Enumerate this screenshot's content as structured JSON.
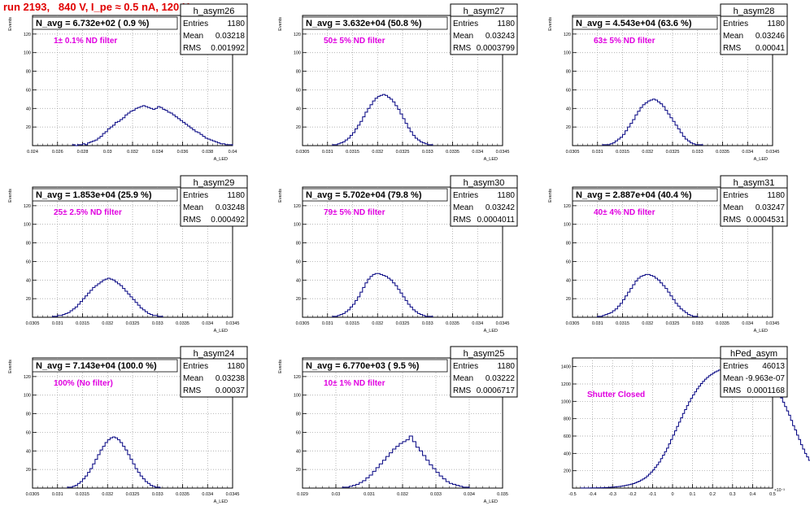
{
  "page": {
    "title": "run 2193,   840 V, I_pe ≈ 0.5 nA, 120 Hz"
  },
  "colors": {
    "histogram": "#000080",
    "annotation": "#e000e0",
    "title": "#e00000",
    "grid": "#999999"
  },
  "chart_data": [
    {
      "type": "bar",
      "hist_name": "h_asym26",
      "header": "N_avg = 6.732e+02 ( 0.9 %)",
      "annotation": "1± 0.1% ND filter",
      "stats": {
        "entries_label": "Entries",
        "entries": "1180",
        "mean_label": "Mean",
        "mean": "0.03218",
        "rms_label": "RMS",
        "rms": "0.001992"
      },
      "xlabel": "A_LED",
      "ylabel": "Events",
      "xlim": [
        0.024,
        0.04
      ],
      "ylim": [
        0,
        140
      ],
      "xticks": [
        "0.024",
        "0.026",
        "0.028",
        "0.03",
        "0.032",
        "0.034",
        "0.036",
        "0.038",
        "0.04"
      ],
      "yticks": [
        "20",
        "40",
        "60",
        "80",
        "100",
        "120"
      ],
      "grid": true,
      "bins": {
        "x0": 0.0272,
        "dx": 0.0002,
        "counts": [
          1,
          0,
          1,
          1,
          2,
          1,
          3,
          4,
          5,
          6,
          8,
          10,
          13,
          15,
          18,
          20,
          22,
          25,
          26,
          28,
          30,
          33,
          35,
          37,
          38,
          40,
          41,
          42,
          43,
          42,
          41,
          40,
          39,
          40,
          42,
          41,
          39,
          38,
          36,
          35,
          33,
          31,
          29,
          27,
          25,
          23,
          21,
          19,
          17,
          15,
          14,
          12,
          10,
          8,
          7,
          6,
          5,
          4,
          3,
          2,
          2,
          1,
          1,
          1
        ]
      }
    },
    {
      "type": "bar",
      "hist_name": "h_asym27",
      "header": "N_avg = 3.632e+04 (50.8 %)",
      "annotation": "50± 5% ND filter",
      "stats": {
        "entries_label": "Entries",
        "entries": "1180",
        "mean_label": "Mean",
        "mean": "0.03243",
        "rms_label": "RMS",
        "rms": "0.0003799"
      },
      "xlabel": "A_LED",
      "ylabel": "Events",
      "xlim": [
        0.0305,
        0.0345
      ],
      "ylim": [
        0,
        140
      ],
      "xticks": [
        "0.0305",
        "0.031",
        "0.0315",
        "0.032",
        "0.0325",
        "0.033",
        "0.0335",
        "0.034",
        "0.0345"
      ],
      "yticks": [
        "20",
        "40",
        "60",
        "80",
        "100",
        "120"
      ],
      "grid": true,
      "bins": {
        "x0": 0.0311,
        "dx": 5e-05,
        "counts": [
          1,
          1,
          2,
          3,
          4,
          6,
          8,
          11,
          14,
          18,
          22,
          26,
          31,
          36,
          40,
          44,
          48,
          51,
          53,
          54,
          55,
          54,
          52,
          50,
          47,
          43,
          39,
          34,
          29,
          24,
          19,
          15,
          11,
          8,
          6,
          4,
          3,
          2,
          1,
          1
        ]
      }
    },
    {
      "type": "bar",
      "hist_name": "h_asym28",
      "header": "N_avg = 4.543e+04 (63.6 %)",
      "annotation": "63± 5% ND filter",
      "stats": {
        "entries_label": "Entries",
        "entries": "1180",
        "mean_label": "Mean",
        "mean": "0.03246",
        "rms_label": "RMS",
        "rms": "0.00041"
      },
      "xlabel": "A_LED",
      "ylabel": "Events",
      "xlim": [
        0.0305,
        0.0345
      ],
      "ylim": [
        0,
        140
      ],
      "xticks": [
        "0.0305",
        "0.031",
        "0.0315",
        "0.032",
        "0.0325",
        "0.033",
        "0.0335",
        "0.034",
        "0.0345"
      ],
      "yticks": [
        "20",
        "40",
        "60",
        "80",
        "100",
        "120"
      ],
      "grid": true,
      "bins": {
        "x0": 0.0311,
        "dx": 5e-05,
        "counts": [
          1,
          1,
          1,
          2,
          3,
          5,
          7,
          9,
          12,
          16,
          20,
          24,
          28,
          33,
          37,
          41,
          44,
          46,
          48,
          49,
          50,
          49,
          47,
          45,
          42,
          38,
          34,
          30,
          26,
          22,
          18,
          14,
          10,
          7,
          5,
          3,
          2,
          1,
          1,
          1
        ]
      }
    },
    {
      "type": "bar",
      "hist_name": "h_asym29",
      "header": "N_avg = 1.853e+04 (25.9 %)",
      "annotation": "25± 2.5% ND filter",
      "stats": {
        "entries_label": "Entries",
        "entries": "1180",
        "mean_label": "Mean",
        "mean": "0.03248",
        "rms_label": "RMS",
        "rms": "0.000492"
      },
      "xlabel": "A_LED",
      "ylabel": "Events",
      "xlim": [
        0.0305,
        0.0345
      ],
      "ylim": [
        0,
        140
      ],
      "xticks": [
        "0.0305",
        "0.031",
        "0.0315",
        "0.032",
        "0.0325",
        "0.033",
        "0.0335",
        "0.034",
        "0.0345"
      ],
      "yticks": [
        "20",
        "40",
        "60",
        "80",
        "100",
        "120"
      ],
      "grid": true,
      "bins": {
        "x0": 0.0309,
        "dx": 5e-05,
        "counts": [
          1,
          1,
          2,
          2,
          3,
          4,
          5,
          7,
          9,
          11,
          14,
          17,
          20,
          23,
          26,
          29,
          32,
          34,
          36,
          38,
          40,
          41,
          42,
          41,
          40,
          38,
          36,
          34,
          31,
          28,
          25,
          22,
          19,
          16,
          13,
          10,
          8,
          6,
          4,
          3,
          2,
          2,
          1,
          1
        ]
      }
    },
    {
      "type": "bar",
      "hist_name": "h_asym30",
      "header": "N_avg = 5.702e+04 (79.8 %)",
      "annotation": "79± 5% ND filter",
      "stats": {
        "entries_label": "Entries",
        "entries": "1180",
        "mean_label": "Mean",
        "mean": "0.03242",
        "rms_label": "RMS",
        "rms": "0.0004011"
      },
      "xlabel": "A_LED",
      "ylabel": "Events",
      "xlim": [
        0.0305,
        0.0345
      ],
      "ylim": [
        0,
        140
      ],
      "xticks": [
        "0.0305",
        "0.031",
        "0.0315",
        "0.032",
        "0.0325",
        "0.033",
        "0.0335",
        "0.034",
        "0.0345"
      ],
      "yticks": [
        "20",
        "40",
        "60",
        "80",
        "100",
        "120"
      ],
      "grid": true,
      "bins": {
        "x0": 0.0311,
        "dx": 5e-05,
        "counts": [
          1,
          1,
          2,
          3,
          4,
          6,
          8,
          11,
          14,
          18,
          22,
          27,
          32,
          37,
          41,
          44,
          46,
          47,
          47,
          46,
          45,
          44,
          42,
          40,
          37,
          34,
          30,
          26,
          22,
          18,
          14,
          11,
          8,
          6,
          4,
          3,
          2,
          1,
          1,
          1
        ]
      }
    },
    {
      "type": "bar",
      "hist_name": "h_asym31",
      "header": "N_avg = 2.887e+04 (40.4 %)",
      "annotation": "40± 4% ND filter",
      "stats": {
        "entries_label": "Entries",
        "entries": "1180",
        "mean_label": "Mean",
        "mean": "0.03247",
        "rms_label": "RMS",
        "rms": "0.0004531"
      },
      "xlabel": "A_LED",
      "ylabel": "Events",
      "xlim": [
        0.0305,
        0.0345
      ],
      "ylim": [
        0,
        140
      ],
      "xticks": [
        "0.0305",
        "0.031",
        "0.0315",
        "0.032",
        "0.0325",
        "0.033",
        "0.0335",
        "0.034",
        "0.0345"
      ],
      "yticks": [
        "20",
        "40",
        "60",
        "80",
        "100",
        "120"
      ],
      "grid": true,
      "bins": {
        "x0": 0.031,
        "dx": 5e-05,
        "counts": [
          1,
          1,
          2,
          3,
          4,
          5,
          7,
          9,
          12,
          15,
          19,
          23,
          27,
          31,
          35,
          39,
          42,
          44,
          45,
          46,
          46,
          45,
          44,
          42,
          40,
          37,
          34,
          31,
          27,
          23,
          19,
          15,
          12,
          9,
          7,
          5,
          3,
          2,
          1,
          1
        ]
      }
    },
    {
      "type": "bar",
      "hist_name": "h_asym24",
      "header": "N_avg = 7.143e+04 (100.0 %)",
      "annotation": "100% (No filter)",
      "stats": {
        "entries_label": "Entries",
        "entries": "1180",
        "mean_label": "Mean",
        "mean": "0.03238",
        "rms_label": "RMS",
        "rms": "0.00037"
      },
      "xlabel": "A_LED",
      "ylabel": "Events",
      "xlim": [
        0.0305,
        0.0345
      ],
      "ylim": [
        0,
        140
      ],
      "xticks": [
        "0.0305",
        "0.031",
        "0.0315",
        "0.032",
        "0.0325",
        "0.033",
        "0.0335",
        "0.034",
        "0.0345"
      ],
      "yticks": [
        "20",
        "40",
        "60",
        "80",
        "100",
        "120"
      ],
      "grid": true,
      "bins": {
        "x0": 0.0312,
        "dx": 5e-05,
        "counts": [
          1,
          1,
          2,
          3,
          5,
          7,
          10,
          13,
          17,
          21,
          26,
          31,
          36,
          41,
          45,
          49,
          52,
          54,
          55,
          54,
          52,
          49,
          45,
          41,
          36,
          31,
          26,
          21,
          17,
          13,
          10,
          7,
          5,
          3,
          2,
          1,
          1
        ]
      }
    },
    {
      "type": "bar",
      "hist_name": "h_asym25",
      "header": "N_avg = 6.770e+03 ( 9.5 %)",
      "annotation": "10± 1% ND filter",
      "stats": {
        "entries_label": "Entries",
        "entries": "1180",
        "mean_label": "Mean",
        "mean": "0.03222",
        "rms_label": "RMS",
        "rms": "0.0006717"
      },
      "xlabel": "A_LED",
      "ylabel": "Events",
      "xlim": [
        0.029,
        0.035
      ],
      "ylim": [
        0,
        140
      ],
      "xticks": [
        "0.029",
        "0.03",
        "0.031",
        "0.032",
        "0.033",
        "0.034",
        "0.035"
      ],
      "yticks": [
        "20",
        "40",
        "60",
        "80",
        "100",
        "120"
      ],
      "grid": true,
      "bins": {
        "x0": 0.0302,
        "dx": 0.0001,
        "counts": [
          1,
          1,
          2,
          3,
          4,
          6,
          8,
          11,
          14,
          18,
          22,
          26,
          30,
          34,
          38,
          42,
          45,
          48,
          50,
          52,
          56,
          50,
          44,
          40,
          35,
          30,
          25,
          21,
          17,
          13,
          10,
          7,
          5,
          4,
          3,
          2,
          1,
          1
        ]
      }
    },
    {
      "type": "bar",
      "hist_name": "hPed_asym",
      "header": "",
      "annotation": "Shutter Closed",
      "stats": {
        "entries_label": "Entries",
        "entries": "46013",
        "mean_label": "Mean",
        "mean": "-9.963e-07",
        "rms_label": "RMS",
        "rms": "0.0001168"
      },
      "xlabel": "",
      "ylabel": "",
      "xlim": [
        -0.5,
        0.5
      ],
      "ylim": [
        0,
        1500
      ],
      "xticks": [
        "-0.5",
        "-0.4",
        "-0.3",
        "-0.2",
        "-0.1",
        "0",
        "0.1",
        "0.2",
        "0.3",
        "0.4",
        "0.5"
      ],
      "yticks": [
        "200",
        "400",
        "600",
        "800",
        "1000",
        "1200",
        "1400"
      ],
      "xexp": "×10⁻³",
      "grid": true,
      "bins": {
        "x0": -0.46,
        "dx": 0.01,
        "counts": [
          1,
          1,
          1,
          1,
          1,
          2,
          2,
          2,
          3,
          3,
          4,
          5,
          6,
          7,
          8,
          10,
          12,
          14,
          16,
          19,
          22,
          26,
          30,
          35,
          40,
          46,
          52,
          60,
          70,
          80,
          92,
          105,
          120,
          140,
          160,
          185,
          210,
          240,
          270,
          300,
          340,
          380,
          420,
          460,
          510,
          560,
          610,
          660,
          710,
          760,
          810,
          860,
          905,
          950,
          995,
          1035,
          1075,
          1110,
          1145,
          1175,
          1205,
          1230,
          1255,
          1275,
          1295,
          1310,
          1325,
          1340,
          1350,
          1360,
          1370,
          1380,
          1385,
          1390,
          1395,
          1400,
          1405,
          1400,
          1395,
          1400,
          1395,
          1380,
          1370,
          1365,
          1450,
          1390,
          1400,
          1380,
          1385,
          1400,
          1360,
          1355,
          1330,
          1300,
          1270,
          1240,
          1200,
          1160,
          1120,
          1080,
          1040,
          990,
          940,
          890,
          840,
          780,
          720,
          670,
          610,
          560,
          500,
          450,
          400,
          360,
          320,
          280,
          245,
          215,
          190,
          165,
          145,
          125,
          110,
          95,
          82,
          70,
          60,
          52,
          45,
          39,
          33,
          28,
          24,
          20,
          17,
          14,
          12,
          10,
          8,
          7,
          6,
          5,
          4,
          3,
          3,
          2,
          2,
          2,
          1,
          1,
          1,
          1,
          1
        ]
      }
    }
  ]
}
